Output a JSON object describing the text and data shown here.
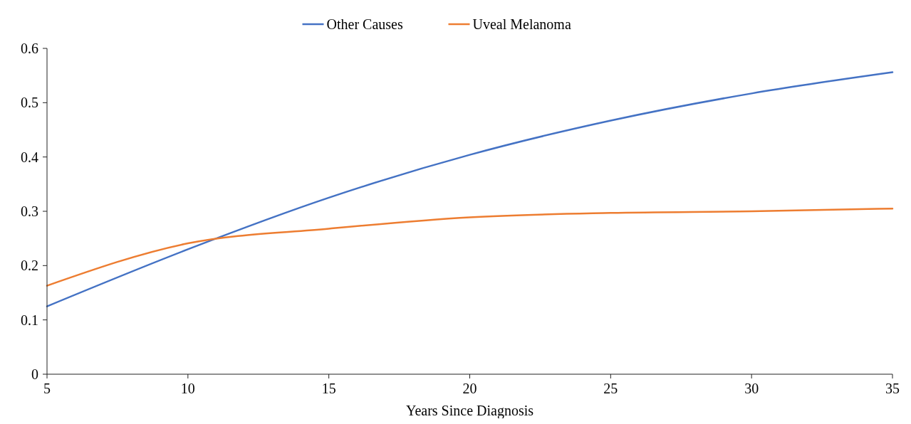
{
  "chart_data": {
    "type": "line",
    "xlabel": "Years Since Diagnosis",
    "x": [
      5,
      10,
      15,
      20,
      25,
      30,
      35
    ],
    "series": [
      {
        "name": "Other Causes",
        "color": "#4472c4",
        "values": [
          0.125,
          0.23,
          0.325,
          0.404,
          0.467,
          0.517,
          0.556
        ]
      },
      {
        "name": "Uveal Melanoma",
        "color": "#ed7d31",
        "values": [
          0.163,
          0.241,
          0.268,
          0.289,
          0.297,
          0.3,
          0.305
        ]
      }
    ],
    "xlim": [
      5,
      35
    ],
    "xticks": [
      5,
      10,
      15,
      20,
      25,
      30,
      35
    ],
    "ylim": [
      0,
      0.6
    ],
    "yticks": [
      0,
      0.1,
      0.2,
      0.3,
      0.4,
      0.5,
      0.6
    ],
    "legend": "top",
    "grid": false,
    "marker": "none",
    "line_style": "solid"
  }
}
